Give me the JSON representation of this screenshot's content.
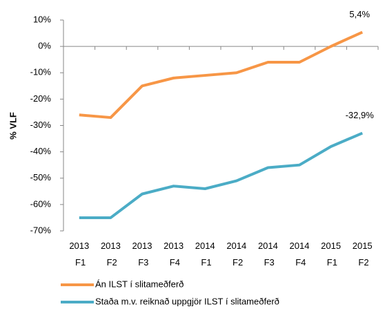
{
  "chart_data": {
    "type": "line",
    "y_label": "% VLF",
    "categories": [
      "2013 F1",
      "2013 F2",
      "2013 F3",
      "2013 F4",
      "2014 F1",
      "2014 F2",
      "2014 F3",
      "2014 F4",
      "2015 F1",
      "2015 F2"
    ],
    "series": [
      {
        "name": "Án ILST í slitameðferð",
        "color": "#f79646",
        "values": [
          -26,
          -27,
          -15,
          -12,
          -11,
          -10,
          -6,
          -6,
          0,
          5.4
        ],
        "value_labels": [
          null,
          null,
          null,
          null,
          null,
          null,
          null,
          null,
          null,
          "5,4%"
        ]
      },
      {
        "name": "Staða m.v. reiknað uppgjör ILST í slitameðferð",
        "color": "#4bacc6",
        "values": [
          -65,
          -65,
          -56,
          -53,
          -54,
          -51,
          -46,
          -45,
          -38,
          -32.9
        ],
        "value_labels": [
          null,
          null,
          null,
          null,
          null,
          null,
          null,
          null,
          null,
          "-32,9%"
        ]
      }
    ],
    "ylim": [
      -70,
      10
    ],
    "yticks": [
      {
        "value": 10,
        "label": "10%"
      },
      {
        "value": 0,
        "label": "0%"
      },
      {
        "value": -10,
        "label": "-10%"
      },
      {
        "value": -20,
        "label": "-20%"
      },
      {
        "value": -30,
        "label": "-30%"
      },
      {
        "value": -40,
        "label": "-40%"
      },
      {
        "value": -50,
        "label": "-50%"
      },
      {
        "value": -60,
        "label": "-60%"
      },
      {
        "value": -70,
        "label": "-70%"
      }
    ],
    "legend": "bottom"
  }
}
